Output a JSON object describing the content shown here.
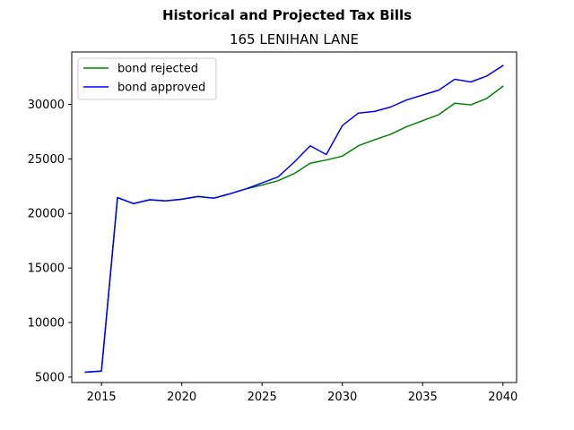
{
  "chart_data": {
    "type": "line",
    "title": "Historical and Projected Tax Bills",
    "subtitle": "165 LENIHAN LANE",
    "xlabel": "",
    "ylabel": "",
    "xlim": [
      2013.15,
      2040.85
    ],
    "ylim": [
      4500,
      34800
    ],
    "x_ticks": [
      2015,
      2020,
      2025,
      2030,
      2035,
      2040
    ],
    "y_ticks": [
      5000,
      10000,
      15000,
      20000,
      25000,
      30000
    ],
    "legend_position": "top-left",
    "grid": false,
    "x": [
      2014,
      2015,
      2016,
      2017,
      2018,
      2019,
      2020,
      2021,
      2022,
      2023,
      2024,
      2025,
      2026,
      2027,
      2028,
      2029,
      2030,
      2031,
      2032,
      2033,
      2034,
      2035,
      2036,
      2037,
      2038,
      2039,
      2040
    ],
    "series": [
      {
        "name": "bond rejected",
        "color": "#008000",
        "values": [
          5450,
          5550,
          21450,
          20900,
          21250,
          21150,
          21300,
          21550,
          21400,
          21800,
          22250,
          22600,
          23000,
          23650,
          24600,
          24900,
          25250,
          26200,
          26750,
          27250,
          27950,
          28500,
          29050,
          30100,
          29950,
          30550,
          31650
        ]
      },
      {
        "name": "bond approved",
        "color": "#0000ff",
        "values": [
          5450,
          5550,
          21450,
          20900,
          21250,
          21150,
          21300,
          21550,
          21400,
          21800,
          22250,
          22800,
          23350,
          24700,
          26200,
          25400,
          28050,
          29200,
          29350,
          29750,
          30400,
          30850,
          31300,
          32300,
          32050,
          32600,
          33550
        ]
      }
    ]
  }
}
